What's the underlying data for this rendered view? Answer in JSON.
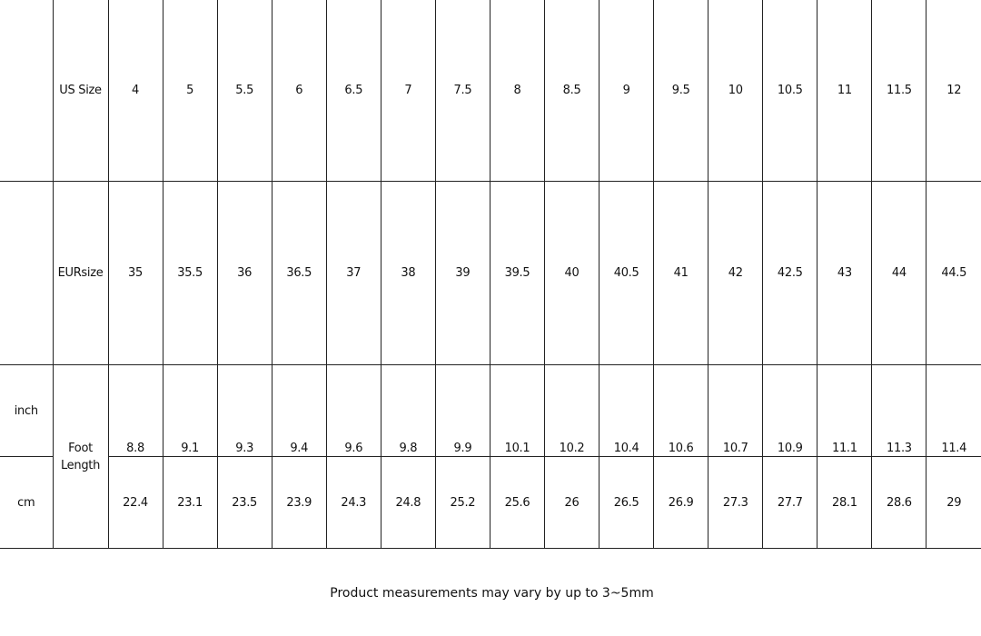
{
  "table": {
    "us_size": {
      "label": "US Size",
      "values": [
        "4",
        "5",
        "5.5",
        "6",
        "6.5",
        "7",
        "7.5",
        "8",
        "8.5",
        "9",
        "9.5",
        "10",
        "10.5",
        "11",
        "11.5",
        "12"
      ]
    },
    "eur_size": {
      "label": "EURsize",
      "values": [
        "35",
        "35.5",
        "36",
        "36.5",
        "37",
        "38",
        "39",
        "39.5",
        "40",
        "40.5",
        "41",
        "42",
        "42.5",
        "43",
        "44",
        "44.5"
      ]
    },
    "foot_length": {
      "label": "Foot Length",
      "inch": {
        "label": "inch",
        "values": [
          "8.8",
          "9.1",
          "9.3",
          "9.4",
          "9.6",
          "9.8",
          "9.9",
          "10.1",
          "10.2",
          "10.4",
          "10.6",
          "10.7",
          "10.9",
          "11.1",
          "11.3",
          "11.4"
        ]
      },
      "cm": {
        "label": "cm",
        "values": [
          "22.4",
          "23.1",
          "23.5",
          "23.9",
          "24.3",
          "24.8",
          "25.2",
          "25.6",
          "26",
          "26.5",
          "26.9",
          "27.3",
          "27.7",
          "28.1",
          "28.6",
          "29"
        ]
      }
    }
  },
  "caption": "Product measurements may vary by up to 3~5mm"
}
